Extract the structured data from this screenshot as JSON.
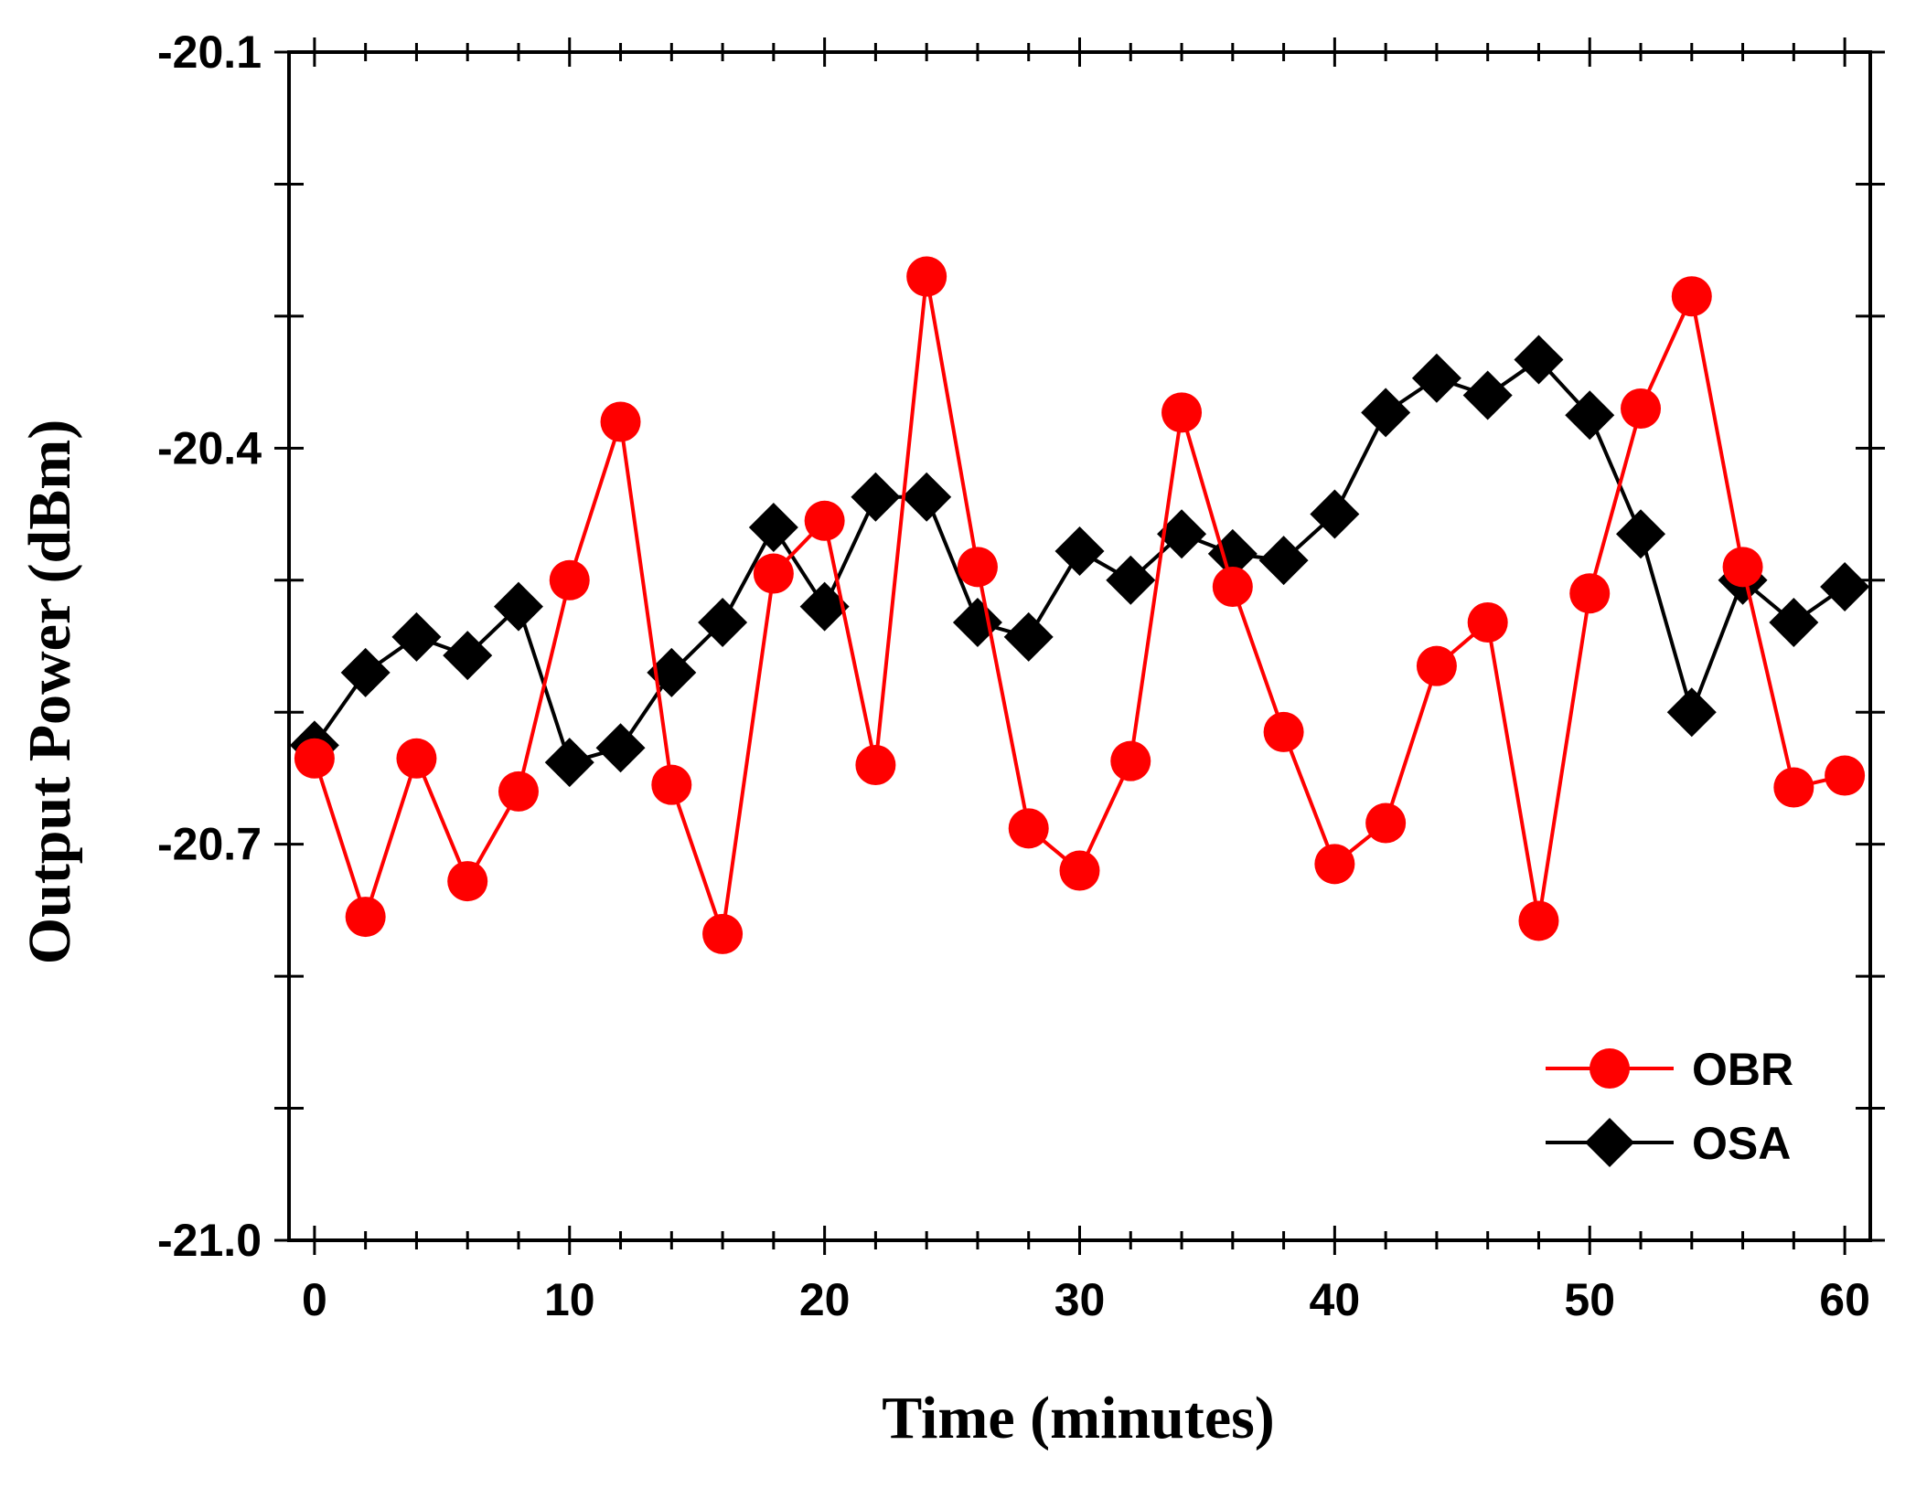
{
  "chart_data": {
    "type": "line",
    "title": "",
    "xlabel": "Time (minutes)",
    "ylabel": "Output Power (dBm)",
    "xlim": [
      -1,
      61
    ],
    "ylim": [
      -21.0,
      -20.1
    ],
    "x_ticks": [
      0,
      10,
      20,
      30,
      40,
      50,
      60
    ],
    "x_tick_labels": [
      "0",
      "10",
      "20",
      "30",
      "40",
      "50",
      "60"
    ],
    "x_minor_step": 2,
    "y_ticks": [
      -21.0,
      -20.9,
      -20.8,
      -20.7,
      -20.6,
      -20.5,
      -20.4,
      -20.3,
      -20.2,
      -20.1
    ],
    "y_labeled_ticks": [
      -21.0,
      -20.7,
      -20.4,
      -20.1
    ],
    "y_tick_labels": [
      "-21.0",
      "-20.7",
      "-20.4",
      "-20.1"
    ],
    "grid": false,
    "legend_position": "bottom-right",
    "x": [
      0,
      2,
      4,
      6,
      8,
      10,
      12,
      14,
      16,
      18,
      20,
      22,
      24,
      26,
      28,
      30,
      32,
      34,
      36,
      38,
      40,
      42,
      44,
      46,
      48,
      50,
      52,
      54,
      56,
      58,
      60
    ],
    "series": [
      {
        "name": "OBR",
        "color": "#ff0000",
        "marker": "circle",
        "values": [
          -20.635,
          -20.755,
          -20.635,
          -20.728,
          -20.66,
          -20.5,
          -20.38,
          -20.655,
          -20.768,
          -20.495,
          -20.455,
          -20.64,
          -20.27,
          -20.49,
          -20.688,
          -20.72,
          -20.637,
          -20.373,
          -20.505,
          -20.615,
          -20.715,
          -20.684,
          -20.565,
          -20.532,
          -20.758,
          -20.51,
          -20.37,
          -20.285,
          -20.49,
          -20.657,
          -20.648
        ]
      },
      {
        "name": "OSA",
        "color": "#000000",
        "marker": "diamond",
        "values": [
          -20.625,
          -20.57,
          -20.543,
          -20.557,
          -20.52,
          -20.638,
          -20.627,
          -20.57,
          -20.532,
          -20.46,
          -20.52,
          -20.437,
          -20.437,
          -20.532,
          -20.543,
          -20.478,
          -20.5,
          -20.465,
          -20.48,
          -20.485,
          -20.45,
          -20.373,
          -20.347,
          -20.36,
          -20.333,
          -20.375,
          -20.465,
          -20.6,
          -20.5,
          -20.532,
          -20.505
        ]
      }
    ]
  }
}
